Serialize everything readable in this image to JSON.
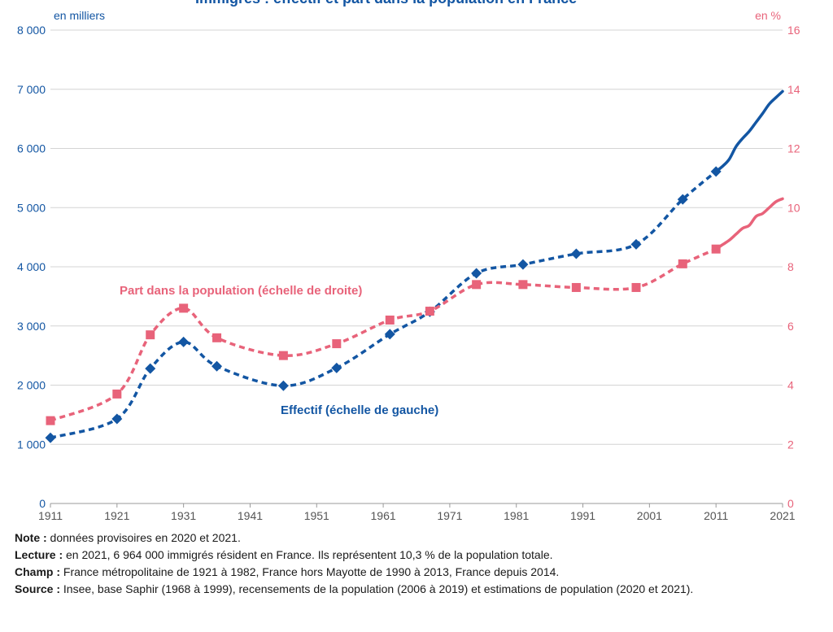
{
  "chart_data": {
    "type": "line",
    "title": "Immigrés : effectif et part dans la population en France",
    "left_axis": {
      "unit_label": "en milliers",
      "ylim": [
        0,
        8000
      ],
      "ticks": [
        0,
        1000,
        2000,
        3000,
        4000,
        5000,
        6000,
        7000,
        8000
      ],
      "tick_labels": [
        "0",
        "1 000",
        "2 000",
        "3 000",
        "4 000",
        "5 000",
        "6 000",
        "7 000",
        "8 000"
      ]
    },
    "right_axis": {
      "unit_label": "en %",
      "ylim": [
        0,
        16
      ],
      "ticks": [
        0,
        2,
        4,
        6,
        8,
        10,
        12,
        14,
        16
      ],
      "tick_labels": [
        "0",
        "2",
        "4",
        "6",
        "8",
        "10",
        "12",
        "14",
        "16"
      ]
    },
    "x_axis": {
      "xlim": [
        1911,
        2021
      ],
      "ticks": [
        1911,
        1921,
        1931,
        1941,
        1951,
        1961,
        1971,
        1981,
        1991,
        2001,
        2011,
        2021
      ],
      "tick_labels": [
        "1911",
        "1921",
        "1931",
        "1941",
        "1951",
        "1961",
        "1971",
        "1981",
        "1991",
        "2001",
        "2011",
        "2021"
      ]
    },
    "grid": true,
    "series": [
      {
        "name": "Effectif (échelle de gauche)",
        "axis": "left",
        "color": "#1356a3",
        "marker": "diamond",
        "x": [
          1911,
          1921,
          1926,
          1931,
          1936,
          1946,
          1954,
          1962,
          1968,
          1975,
          1982,
          1990,
          1999,
          2006,
          2011
        ],
        "values": [
          1110,
          1430,
          2280,
          2730,
          2320,
          1990,
          2290,
          2860,
          3240,
          3890,
          4040,
          4220,
          4380,
          5140,
          5610
        ],
        "solid_x": [
          2011,
          2012,
          2013,
          2014,
          2015,
          2016,
          2017,
          2018,
          2019,
          2020,
          2021
        ],
        "solid_values": [
          5610,
          5700,
          5820,
          6030,
          6170,
          6290,
          6440,
          6590,
          6750,
          6860,
          6964
        ]
      },
      {
        "name": "Part dans la population (échelle de droite)",
        "axis": "right",
        "color": "#e8637a",
        "marker": "square",
        "x": [
          1911,
          1921,
          1926,
          1931,
          1936,
          1946,
          1954,
          1962,
          1968,
          1975,
          1982,
          1990,
          1999,
          2006,
          2011
        ],
        "values": [
          2.8,
          3.7,
          5.7,
          6.6,
          5.6,
          5.0,
          5.4,
          6.2,
          6.5,
          7.4,
          7.4,
          7.3,
          7.3,
          8.1,
          8.6
        ],
        "solid_x": [
          2011,
          2012,
          2013,
          2014,
          2015,
          2016,
          2017,
          2018,
          2019,
          2020,
          2021
        ],
        "solid_values": [
          8.6,
          8.75,
          8.9,
          9.1,
          9.3,
          9.4,
          9.7,
          9.8,
          10.0,
          10.2,
          10.3
        ]
      }
    ],
    "annotations": {
      "part": "Part dans la population (échelle de droite)",
      "effectif": "Effectif (échelle de gauche)"
    },
    "colors": {
      "left_axis": "#1356a3",
      "right_axis": "#e8637a",
      "grid": "#d4d4d4",
      "axis_text": "#555555"
    }
  },
  "notes": [
    {
      "label": "Note :",
      "text": " données provisoires en 2020 et 2021."
    },
    {
      "label": "Lecture :",
      "text": " en 2021, 6 964 000 immigrés résident en France. Ils représentent 10,3 % de la population totale."
    },
    {
      "label": "Champ :",
      "text": " France métropolitaine de 1921 à 1982, France hors Mayotte de 1990 à 2013, France depuis 2014."
    },
    {
      "label": "Source :",
      "text": " Insee, base Saphir (1968 à 1999), recensements de la population (2006 à 2019) et estimations de population (2020 et 2021)."
    }
  ]
}
